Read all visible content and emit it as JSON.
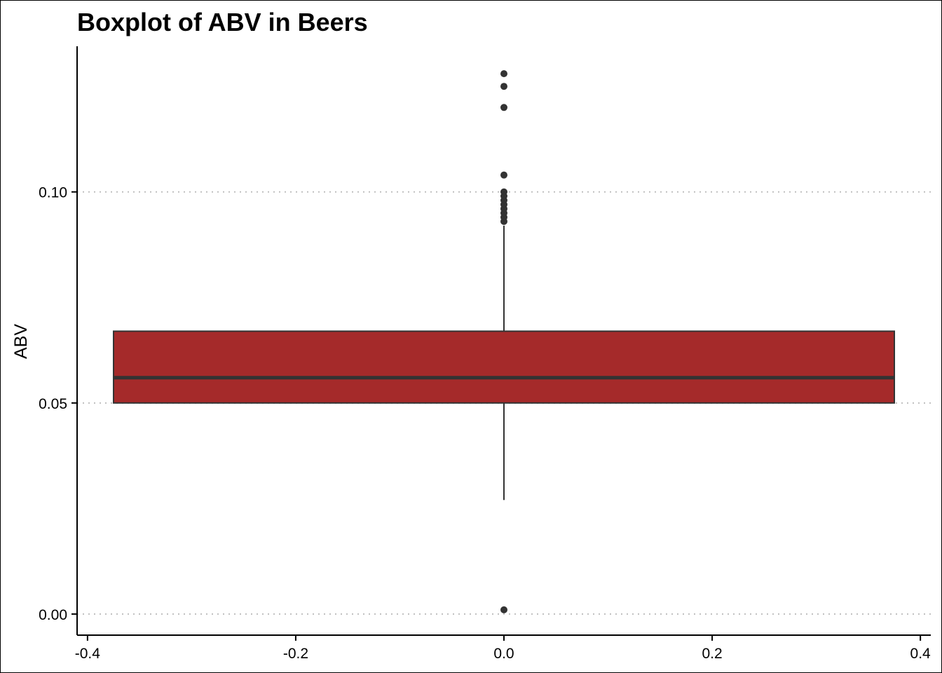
{
  "chart_data": {
    "type": "boxplot",
    "title": "Boxplot of ABV in Beers",
    "xlabel": "",
    "ylabel": "ABV",
    "xlim": [
      -0.41,
      0.41
    ],
    "ylim": [
      -0.005,
      0.1345
    ],
    "x_ticks": [
      {
        "value": -0.4,
        "label": "-0.4"
      },
      {
        "value": -0.2,
        "label": "-0.2"
      },
      {
        "value": 0.0,
        "label": "0.0"
      },
      {
        "value": 0.2,
        "label": "0.2"
      },
      {
        "value": 0.4,
        "label": "0.4"
      }
    ],
    "y_ticks": [
      {
        "value": 0.0,
        "label": "0.00"
      },
      {
        "value": 0.05,
        "label": "0.05"
      },
      {
        "value": 0.1,
        "label": "0.10"
      }
    ],
    "grid": {
      "horizontal": true,
      "vertical": false,
      "style": "dotted"
    },
    "box": {
      "x_center": 0.0,
      "x_min": -0.375,
      "x_max": 0.375,
      "q1": 0.05,
      "median": 0.056,
      "q3": 0.067,
      "whisker_low": 0.027,
      "whisker_high": 0.092
    },
    "outliers": [
      0.001,
      0.093,
      0.094,
      0.095,
      0.096,
      0.097,
      0.098,
      0.099,
      0.1,
      0.104,
      0.12,
      0.125,
      0.128
    ],
    "colors": {
      "box_fill": "#A52A2A",
      "box_line": "#333333",
      "grid": "#bfbfbf",
      "outlier": "#333333"
    }
  }
}
